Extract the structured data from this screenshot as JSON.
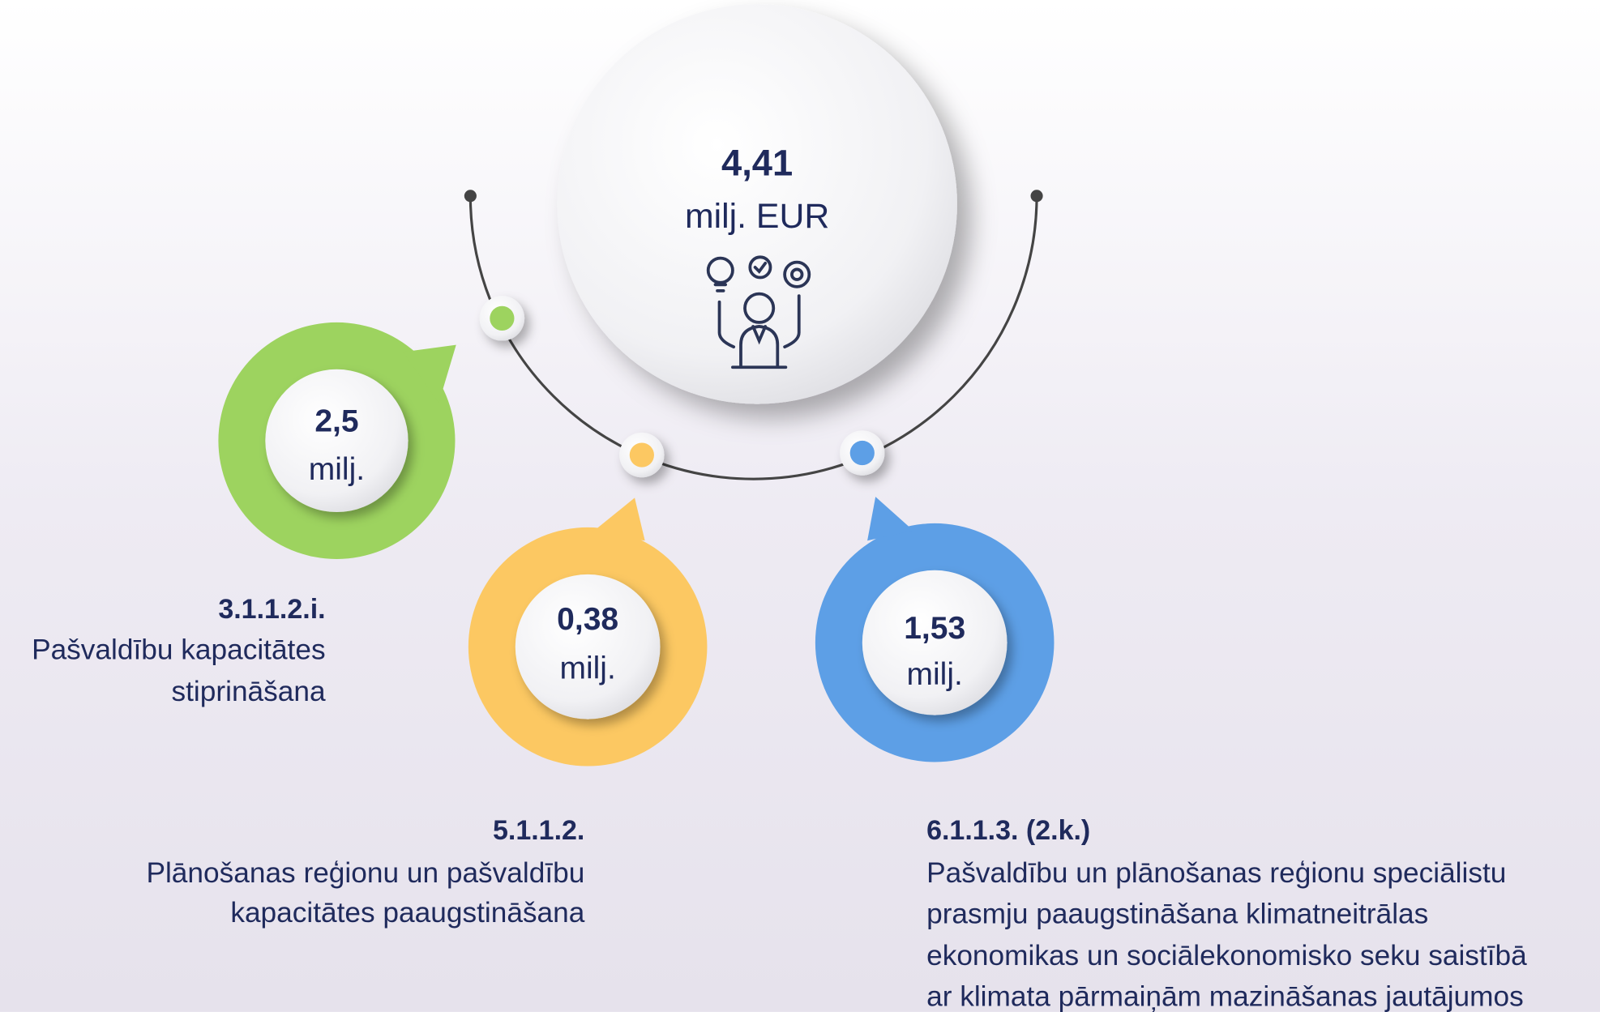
{
  "center": {
    "value": "4,41",
    "unit": "milj. EUR"
  },
  "items": [
    {
      "value": "2,5",
      "unit": "milj.",
      "code": "3.1.1.2.i.",
      "description": [
        "Pašvaldību kapacitātes",
        "stiprināšana"
      ]
    },
    {
      "value": "0,38",
      "unit": "milj.",
      "code": "5.1.1.2.",
      "description": [
        "Plānošanas reģionu un pašvaldību",
        "kapacitātes paaugstināšana"
      ]
    },
    {
      "value": "1,53",
      "unit": "milj.",
      "code": "6.1.1.3. (2.k.)",
      "description": [
        "Pašvaldību un plānošanas reģionu speciālistu",
        "prasmju paaugstināšana klimatneitrālas",
        "ekonomikas un sociālekonomisko seku saistībā",
        "ar klimata pārmaiņām mazināšanas jautājumos"
      ]
    }
  ]
}
